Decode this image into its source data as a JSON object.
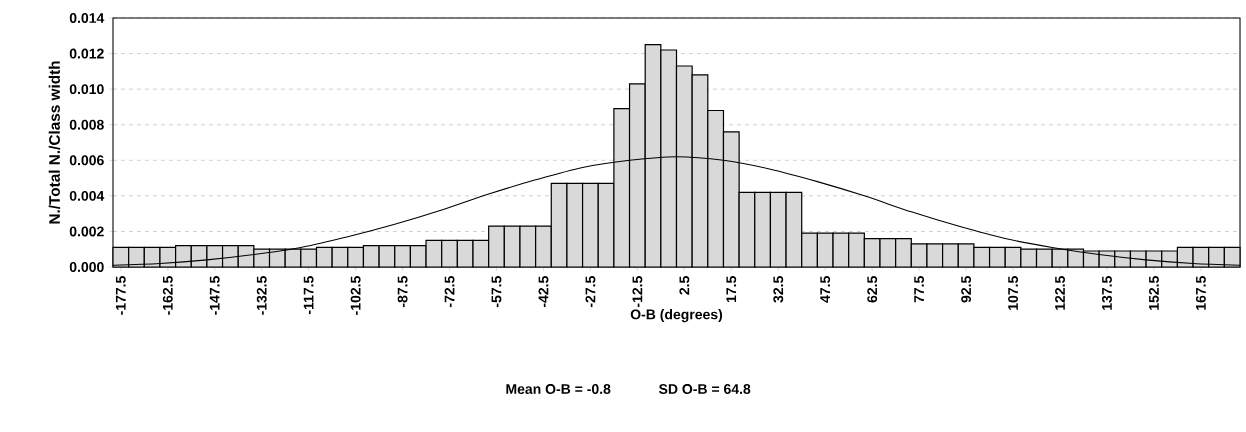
{
  "chart_data": {
    "type": "histogram",
    "xlabel": "O-B (degrees)",
    "ylabel": "N./Total N./Class width",
    "bins": [
      -180,
      -175,
      -170,
      -165,
      -160,
      -155,
      -150,
      -145,
      -140,
      -135,
      -130,
      -125,
      -120,
      -115,
      -110,
      -105,
      -100,
      -95,
      -90,
      -85,
      -80,
      -75,
      -70,
      -65,
      -60,
      -55,
      -50,
      -45,
      -40,
      -35,
      -30,
      -25,
      -20,
      -15,
      -10,
      -5,
      0,
      5,
      10,
      15,
      20,
      25,
      30,
      35,
      40,
      45,
      50,
      55,
      60,
      65,
      70,
      75,
      80,
      85,
      90,
      95,
      100,
      105,
      110,
      115,
      120,
      125,
      130,
      135,
      140,
      145,
      150,
      155,
      160,
      165,
      170,
      175,
      180
    ],
    "values": [
      0.0011,
      0.0011,
      0.0011,
      0.0011,
      0.0012,
      0.0012,
      0.0012,
      0.0012,
      0.0012,
      0.001,
      0.001,
      0.001,
      0.001,
      0.0011,
      0.0011,
      0.0011,
      0.0012,
      0.0012,
      0.0012,
      0.0012,
      0.0015,
      0.0015,
      0.0015,
      0.0015,
      0.0023,
      0.0023,
      0.0023,
      0.0023,
      0.0047,
      0.0047,
      0.0047,
      0.0047,
      0.0089,
      0.0103,
      0.0125,
      0.0122,
      0.0113,
      0.0108,
      0.0088,
      0.0076,
      0.0042,
      0.0042,
      0.0042,
      0.0042,
      0.0019,
      0.0019,
      0.0019,
      0.0019,
      0.0016,
      0.0016,
      0.0016,
      0.0013,
      0.0013,
      0.0013,
      0.0013,
      0.0011,
      0.0011,
      0.0011,
      0.001,
      0.001,
      0.001,
      0.001,
      0.0009,
      0.0009,
      0.0009,
      0.0009,
      0.0009,
      0.0009,
      0.0011,
      0.0011,
      0.0011,
      0.0011
    ],
    "color": "#d9d9d9",
    "series": [
      {
        "type": "line",
        "color": "#000000",
        "x": [
          -180,
          -165,
          -150,
          -135,
          -120,
          -105,
          -90,
          -75,
          -60,
          -45,
          -30,
          -15,
          0,
          15,
          30,
          45,
          60,
          75,
          90,
          105,
          120,
          135,
          150,
          165,
          180
        ],
        "values": [
          0.0001,
          0.0002,
          0.0004,
          0.0007,
          0.0011,
          0.0017,
          0.0024,
          0.0032,
          0.0041,
          0.0049,
          0.0056,
          0.006,
          0.0062,
          0.006,
          0.0055,
          0.0048,
          0.004,
          0.0031,
          0.0023,
          0.0016,
          0.0011,
          0.0007,
          0.0004,
          0.0002,
          0.0001
        ]
      }
    ],
    "xlim": [
      -180,
      180
    ],
    "xticks": [
      {
        "value": -177.5,
        "label": "-177.5"
      },
      {
        "value": -162.5,
        "label": "-162.5"
      },
      {
        "value": -147.5,
        "label": "-147.5"
      },
      {
        "value": -132.5,
        "label": "-132.5"
      },
      {
        "value": -117.5,
        "label": "-117.5"
      },
      {
        "value": -102.5,
        "label": "-102.5"
      },
      {
        "value": -87.5,
        "label": "-87.5"
      },
      {
        "value": -72.5,
        "label": "-72.5"
      },
      {
        "value": -57.5,
        "label": "-57.5"
      },
      {
        "value": -42.5,
        "label": "-42.5"
      },
      {
        "value": -27.5,
        "label": "-27.5"
      },
      {
        "value": -12.5,
        "label": "-12.5"
      },
      {
        "value": 2.5,
        "label": "2.5"
      },
      {
        "value": 17.5,
        "label": "17.5"
      },
      {
        "value": 32.5,
        "label": "32.5"
      },
      {
        "value": 47.5,
        "label": "47.5"
      },
      {
        "value": 62.5,
        "label": "62.5"
      },
      {
        "value": 77.5,
        "label": "77.5"
      },
      {
        "value": 92.5,
        "label": "92.5"
      },
      {
        "value": 107.5,
        "label": "107.5"
      },
      {
        "value": 122.5,
        "label": "122.5"
      },
      {
        "value": 137.5,
        "label": "137.5"
      },
      {
        "value": 152.5,
        "label": "152.5"
      },
      {
        "value": 167.5,
        "label": "167.5"
      }
    ],
    "ylim": [
      0,
      0.014
    ],
    "yticks": [
      {
        "value": 0,
        "label": "0.000"
      },
      {
        "value": 0.002,
        "label": "0.002"
      },
      {
        "value": 0.004,
        "label": "0.004"
      },
      {
        "value": 0.006,
        "label": "0.006"
      },
      {
        "value": 0.008,
        "label": "0.008"
      },
      {
        "value": 0.01,
        "label": "0.010"
      },
      {
        "value": 0.012,
        "label": "0.012"
      },
      {
        "value": 0.014,
        "label": "0.014"
      }
    ],
    "grid": "y",
    "annotations": [
      "Mean O-B = -0.8",
      "SD O-B = 64.8"
    ]
  }
}
